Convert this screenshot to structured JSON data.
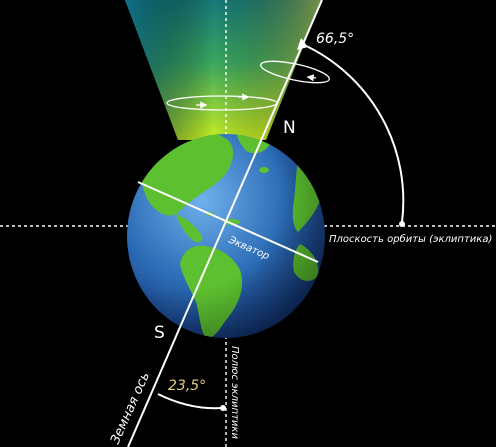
{
  "labels": {
    "tilt_angle": "66,5°",
    "north_pole": "N",
    "south_pole": "S",
    "equator": "Экватор",
    "orbit_plane": "Плоскость орбиты (эклиптика)",
    "axial_angle": "23,5°",
    "earth_axis": "Земная ось",
    "ecliptic_pole": "Полюс эклиптики"
  },
  "colors": {
    "background": "#000000",
    "lines": "#ffffff",
    "ocean": "#2e6db4",
    "land": "#5cc030",
    "cone_top": "#1e8a68",
    "cone_bottom": "#c8f020",
    "axial_angle_text": "#e8cf7a"
  },
  "angles_deg": {
    "axial_tilt": 23.5,
    "axis_to_orbit_plane": 66.5
  }
}
